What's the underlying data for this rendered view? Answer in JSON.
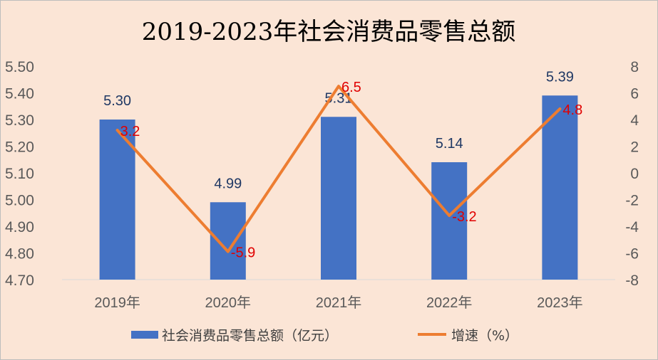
{
  "chart_data": {
    "type": "bar",
    "title": "2019-2023年社会消费品零售总额",
    "categories": [
      "2019年",
      "2020年",
      "2021年",
      "2022年",
      "2023年"
    ],
    "series": [
      {
        "name": "社会消费品零售总额（亿元）",
        "type": "bar",
        "axis": "left",
        "values": [
          5.3,
          4.99,
          5.31,
          5.14,
          5.39
        ],
        "labels": [
          "5.30",
          "4.99",
          "5.31",
          "5.14",
          "5.39"
        ],
        "color": "#4472c4"
      },
      {
        "name": "增速（%）",
        "type": "line",
        "axis": "right",
        "values": [
          3.2,
          -5.9,
          6.5,
          -3.2,
          4.8
        ],
        "labels": [
          "3.2",
          "-5.9",
          "6.5",
          "-3.2",
          "4.8"
        ],
        "color": "#ed7d31",
        "label_color": "#e00000"
      }
    ],
    "ylim_left": [
      4.7,
      5.5
    ],
    "yticks_left": [
      "5.50",
      "5.40",
      "5.30",
      "5.20",
      "5.10",
      "5.00",
      "4.90",
      "4.80",
      "4.70"
    ],
    "ylim_right": [
      -8,
      8
    ],
    "yticks_right": [
      "8",
      "6",
      "4",
      "2",
      "0",
      "-2",
      "-4",
      "-6",
      "-8"
    ],
    "grid": false,
    "legend_position": "bottom"
  }
}
